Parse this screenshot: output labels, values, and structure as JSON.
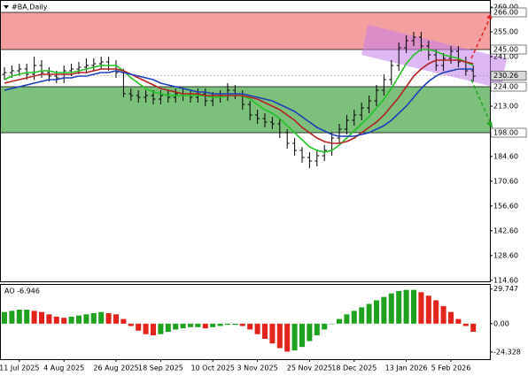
{
  "chart_data": [
    {
      "type": "ohlc",
      "title": "#BA,Daily",
      "color": "#000000",
      "categories": [
        null,
        null,
        "11 Jul 2025",
        null,
        null,
        null,
        null,
        null,
        "4 Aug 2025",
        null,
        null,
        null,
        null,
        null,
        null,
        "26 Aug 2025",
        null,
        null,
        null,
        null,
        null,
        "18 Sep 2025",
        null,
        null,
        null,
        null,
        null,
        null,
        "10 Oct 2025",
        null,
        null,
        null,
        null,
        null,
        "3 Nov 2025",
        null,
        null,
        null,
        null,
        null,
        null,
        "25 Nov 2025",
        null,
        null,
        null,
        null,
        null,
        "18 Dec 2025",
        null,
        null,
        null,
        null,
        null,
        null,
        "13 Jan 2026",
        null,
        null,
        null,
        null,
        null,
        "5 Feb 2026",
        null,
        null,
        null
      ],
      "open": [
        231,
        232,
        233,
        234,
        231,
        236,
        232,
        230,
        229,
        233,
        234,
        235,
        236,
        237,
        238,
        236,
        232,
        220,
        219,
        218,
        219,
        217,
        219,
        218,
        220,
        219,
        218,
        220,
        216,
        218,
        219,
        222,
        220,
        214,
        208,
        206,
        204,
        203,
        198,
        192,
        188,
        184,
        182,
        185,
        188,
        195,
        200,
        205,
        208,
        212,
        216,
        222,
        228,
        236,
        246,
        250,
        252,
        247,
        242,
        236,
        240,
        244,
        238,
        233
      ],
      "high": [
        235,
        236,
        237,
        237,
        241,
        239,
        235,
        233,
        236,
        237,
        238,
        240,
        240,
        241,
        241,
        239,
        234,
        223,
        222,
        222,
        222,
        222,
        222,
        223,
        223,
        222,
        223,
        223,
        221,
        222,
        226,
        225,
        222,
        216,
        211,
        209,
        207,
        206,
        200,
        195,
        190,
        187,
        188,
        191,
        198,
        203,
        208,
        211,
        215,
        219,
        225,
        231,
        239,
        249,
        253,
        255,
        255,
        250,
        245,
        243,
        247,
        247,
        241,
        236
      ],
      "low": [
        228,
        229,
        230,
        228,
        228,
        229,
        227,
        226,
        226,
        230,
        231,
        232,
        233,
        234,
        233,
        229,
        218,
        216,
        215,
        215,
        214,
        214,
        215,
        215,
        216,
        215,
        215,
        213,
        213,
        215,
        216,
        217,
        211,
        205,
        203,
        201,
        200,
        195,
        189,
        185,
        181,
        178,
        179,
        182,
        185,
        192,
        197,
        202,
        205,
        209,
        213,
        219,
        225,
        233,
        243,
        247,
        244,
        239,
        233,
        233,
        237,
        235,
        230,
        227
      ],
      "close": [
        232,
        233,
        234,
        231,
        236,
        232,
        230,
        229,
        233,
        234,
        235,
        236,
        237,
        238,
        236,
        232,
        220,
        219,
        218,
        219,
        217,
        219,
        218,
        220,
        219,
        218,
        220,
        216,
        218,
        219,
        222,
        220,
        214,
        208,
        206,
        204,
        203,
        198,
        192,
        188,
        184,
        182,
        185,
        188,
        195,
        200,
        205,
        208,
        212,
        216,
        222,
        228,
        236,
        246,
        250,
        252,
        247,
        242,
        236,
        240,
        244,
        238,
        233,
        230
      ],
      "lines": [
        {
          "color": "#22c322",
          "values": [
            228,
            230,
            231,
            232,
            232,
            233,
            233,
            232,
            232,
            232,
            233,
            234,
            235,
            236,
            236,
            236,
            233,
            229,
            226,
            223,
            221,
            220,
            219,
            219,
            219,
            219,
            219,
            219,
            218,
            218,
            219,
            219,
            219,
            217,
            214,
            211,
            209,
            206,
            202,
            198,
            194,
            190,
            188,
            187,
            188,
            191,
            195,
            199,
            203,
            207,
            212,
            217,
            223,
            230,
            237,
            242,
            245,
            245,
            244,
            242,
            241,
            240,
            238,
            236
          ]
        },
        {
          "color": "#b22222",
          "values": [
            226,
            227,
            228,
            229,
            230,
            231,
            231,
            231,
            231,
            231,
            232,
            232,
            233,
            234,
            234,
            234,
            233,
            231,
            229,
            227,
            225,
            223,
            222,
            221,
            220,
            220,
            220,
            219,
            219,
            219,
            219,
            219,
            219,
            218,
            217,
            215,
            213,
            211,
            208,
            205,
            201,
            198,
            195,
            193,
            192,
            192,
            193,
            195,
            198,
            201,
            204,
            208,
            213,
            218,
            224,
            230,
            234,
            237,
            239,
            239,
            239,
            239,
            238,
            237
          ]
        },
        {
          "color": "#1c3fb8",
          "values": [
            222,
            223,
            224,
            225,
            226,
            227,
            228,
            228,
            229,
            229,
            230,
            230,
            231,
            232,
            232,
            233,
            232,
            231,
            230,
            229,
            228,
            226,
            225,
            224,
            223,
            222,
            221,
            221,
            220,
            220,
            220,
            220,
            220,
            219,
            218,
            217,
            216,
            214,
            212,
            210,
            207,
            204,
            201,
            199,
            197,
            196,
            196,
            196,
            197,
            198,
            200,
            202,
            205,
            209,
            213,
            218,
            223,
            227,
            230,
            232,
            233,
            234,
            234,
            234
          ]
        }
      ],
      "zones": [
        {
          "top": {
            "value": 266,
            "label": "266.00"
          },
          "bottom": {
            "value": 245,
            "label": "245.00"
          },
          "color": "#f5a0a0"
        },
        {
          "top": {
            "value": 224,
            "label": "224.00"
          },
          "bottom": {
            "value": 198,
            "label": "198.00"
          },
          "color": "#7cc07c"
        }
      ],
      "last_price": {
        "value": 230.26,
        "label": "230.26"
      },
      "ylim": [
        114,
        273
      ],
      "yticks": [
        {
          "value": 269,
          "label": "269.00"
        },
        {
          "value": 255,
          "label": "255.00"
        },
        {
          "value": 241,
          "label": "241.00"
        },
        {
          "value": 213,
          "label": "213.00"
        },
        {
          "value": 184.6,
          "label": "184.60"
        },
        {
          "value": 170.6,
          "label": "170.60"
        },
        {
          "value": 156.6,
          "label": "156.60"
        },
        {
          "value": 142.6,
          "label": "142.60"
        },
        {
          "value": 128.6,
          "label": "128.60"
        },
        {
          "value": 114.6,
          "label": "114.60"
        }
      ],
      "grid": false
    },
    {
      "type": "ao",
      "title": "AO -6.946",
      "up_color": "#1fa31f",
      "down_color": "#e3221c",
      "values": [
        10,
        11,
        12,
        12,
        11,
        10,
        8,
        6,
        5,
        6,
        7,
        8,
        9,
        10,
        9,
        8,
        4,
        -2,
        -6,
        -9,
        -10,
        -9,
        -7,
        -5,
        -4,
        -3,
        -3,
        -4,
        -3,
        -2,
        -1,
        -1,
        -2,
        -5,
        -9,
        -13,
        -17,
        -21,
        -24,
        -23,
        -20,
        -15,
        -10,
        -5,
        0,
        4,
        8,
        11,
        14,
        17,
        20,
        23,
        26,
        28,
        29,
        29,
        27,
        24,
        20,
        15,
        10,
        4,
        -2,
        -6.946
      ],
      "ylim": [
        -30.5,
        33.3
      ],
      "yticks": [
        {
          "value": 29.747,
          "label": "29.747"
        },
        {
          "value": 0,
          "label": "0.00"
        },
        {
          "value": -24.328,
          "label": "-24.328"
        }
      ]
    }
  ]
}
